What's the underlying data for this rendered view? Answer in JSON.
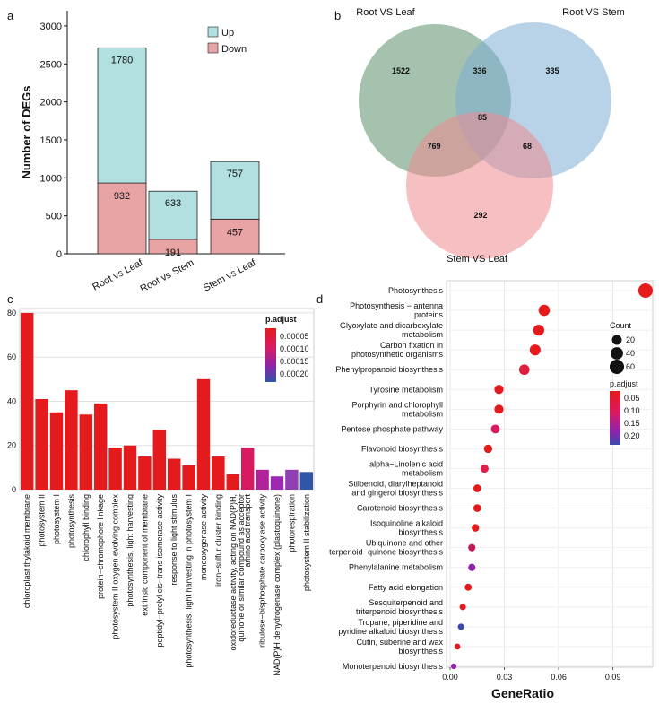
{
  "panel_labels": {
    "a": "a",
    "b": "b",
    "c": "c",
    "d": "d"
  },
  "chart_data": [
    {
      "panel": "a",
      "type": "bar",
      "stacked": true,
      "ylabel": "Number of DEGs",
      "ylim": [
        0,
        3200
      ],
      "yticks": [
        0,
        500,
        1000,
        1500,
        2000,
        2500,
        3000
      ],
      "categories": [
        "Root vs Leaf",
        "Root vs Stem",
        "Stem vs Leaf"
      ],
      "series": [
        {
          "name": "Down",
          "color": "#e8a3a5",
          "label_color": "#c2185b",
          "values": [
            932,
            191,
            457
          ]
        },
        {
          "name": "Up",
          "color": "#b2dfdf",
          "label_color": "#1e88e5",
          "values": [
            1780,
            633,
            757
          ]
        }
      ],
      "legend": [
        "Up",
        "Down"
      ]
    },
    {
      "panel": "b",
      "type": "venn",
      "sets": [
        {
          "name": "Root VS Leaf",
          "color": "#5a8f6a",
          "label_color": "#6aa57a"
        },
        {
          "name": "Root VS Stem",
          "color": "#7eaed6",
          "label_color": "#90bde0"
        },
        {
          "name": "Stem VS Leaf",
          "color": "#ee8a8f",
          "label_color": "#ef9a9a"
        }
      ],
      "regions": {
        "root_leaf_only": "1522",
        "root_stem_only": "335",
        "stem_leaf_only": "292",
        "rl_rs": "336",
        "rl_sl": "769",
        "rs_sl": "68",
        "all": "85"
      }
    },
    {
      "panel": "c",
      "type": "bar",
      "ylim": [
        0,
        82
      ],
      "yticks": [
        0,
        20,
        40,
        60,
        80
      ],
      "legend_title": "p.adjust",
      "legend_ticks": [
        "0.00005",
        "0.00010",
        "0.00015",
        "0.00020"
      ],
      "categories": [
        "chloroplast thylakoid membrane",
        "photosystem II",
        "photosystem I",
        "photosynthesis",
        "chlorophyll binding",
        "protein−chromophore linkage",
        "photosystem II oxygen evolving complex",
        "photosynthesis, light harvesting",
        "extrinsic component of membrane",
        "peptidyl−prolyl cis−trans isomerase activity",
        "response to light stimulus",
        "photosynthesis, light harvesting in photosystem I",
        "monooxygenase activity",
        "iron−sulfur cluster binding",
        "oxidoreductase activity, acting on NAD(P)H, quinone or similar compound as acceptor",
        "amino acid transport",
        "ribulose−bisphosphate carboxylase activity",
        "NAD(P)H dehydrogenase complex (plastoquinone)",
        "photorespiration",
        "photosystem II stabilization"
      ],
      "values": [
        80,
        41,
        35,
        45,
        34,
        39,
        19,
        20,
        15,
        27,
        14,
        11,
        50,
        15,
        7,
        19,
        9,
        6,
        9,
        8
      ],
      "colors": [
        "#e41a1c",
        "#e41a1c",
        "#e41a1c",
        "#e41a1c",
        "#e41a1c",
        "#e41a1c",
        "#e41a1c",
        "#e41a1c",
        "#e41a1c",
        "#e41a1c",
        "#e41a1c",
        "#e41a1c",
        "#e41a1c",
        "#e41a1c",
        "#e41a1c",
        "#d81b60",
        "#b0229a",
        "#9c27b0",
        "#8e3fb0",
        "#2f56a8"
      ]
    },
    {
      "panel": "d",
      "type": "scatter",
      "xlabel": "GeneRatio",
      "xlim": [
        -0.002,
        0.112
      ],
      "xticks": [
        0.0,
        0.03,
        0.06,
        0.09
      ],
      "xtick_labels": [
        "0.00",
        "0.03",
        "0.06",
        "0.09"
      ],
      "size_legend_title": "Count",
      "size_legend": [
        20,
        40,
        60
      ],
      "color_legend_title": "p.adjust",
      "color_legend_ticks": [
        "0.05",
        "0.10",
        "0.15",
        "0.20"
      ],
      "terms": [
        {
          "label": [
            "Photosynthesis"
          ],
          "x": 0.108,
          "count": 60,
          "color": "#e41a1c"
        },
        {
          "label": [
            "Photosynthesis − antenna",
            "proteins"
          ],
          "x": 0.052,
          "count": 30,
          "color": "#e41a1c"
        },
        {
          "label": [
            "Glyoxylate and dicarboxylate",
            "metabolism"
          ],
          "x": 0.049,
          "count": 28,
          "color": "#e41a1c"
        },
        {
          "label": [
            "Carbon fixation in",
            "photosynthetic organisms"
          ],
          "x": 0.047,
          "count": 27,
          "color": "#e41a1c"
        },
        {
          "label": [
            "Phenylpropanoid biosynthesis"
          ],
          "x": 0.041,
          "count": 24,
          "color": "#df1f3c"
        },
        {
          "label": [
            "Tyrosine metabolism"
          ],
          "x": 0.027,
          "count": 16,
          "color": "#e41a1c"
        },
        {
          "label": [
            "Porphyrin and chlorophyll",
            "metabolism"
          ],
          "x": 0.027,
          "count": 16,
          "color": "#e41a1c"
        },
        {
          "label": [
            "Pentose phosphate pathway"
          ],
          "x": 0.025,
          "count": 14,
          "color": "#d81b60"
        },
        {
          "label": [
            "Flavonoid biosynthesis"
          ],
          "x": 0.021,
          "count": 12,
          "color": "#e41a1c"
        },
        {
          "label": [
            "alpha−Linolenic acid",
            "metabolism"
          ],
          "x": 0.019,
          "count": 11,
          "color": "#e0204a"
        },
        {
          "label": [
            "Stilbenoid, diarylheptanoid",
            "and gingerol biosynthesis"
          ],
          "x": 0.015,
          "count": 9,
          "color": "#e41a1c"
        },
        {
          "label": [
            "Carotenoid biosynthesis"
          ],
          "x": 0.015,
          "count": 9,
          "color": "#e41a1c"
        },
        {
          "label": [
            "Isoquinoline alkaloid",
            "biosynthesis"
          ],
          "x": 0.014,
          "count": 8,
          "color": "#e41a1c"
        },
        {
          "label": [
            "Ubiquinone and other",
            "terpenoid−quinone biosynthesis"
          ],
          "x": 0.012,
          "count": 7,
          "color": "#c2185b"
        },
        {
          "label": [
            "Phenylalanine metabolism"
          ],
          "x": 0.012,
          "count": 7,
          "color": "#8e24aa"
        },
        {
          "label": [
            "Fatty acid elongation"
          ],
          "x": 0.01,
          "count": 6,
          "color": "#e41a1c"
        },
        {
          "label": [
            "Sesquiterpenoid and",
            "triterpenoid biosynthesis"
          ],
          "x": 0.007,
          "count": 4,
          "color": "#e41a1c"
        },
        {
          "label": [
            "Tropane, piperidine and",
            "pyridine alkaloid biosynthesis"
          ],
          "x": 0.006,
          "count": 4,
          "color": "#3949ab"
        },
        {
          "label": [
            "Cutin, suberine and wax",
            "biosynthesis"
          ],
          "x": 0.004,
          "count": 3,
          "color": "#e41a1c"
        },
        {
          "label": [
            "Monoterpenoid biosynthesis"
          ],
          "x": 0.002,
          "count": 2,
          "color": "#8e24aa"
        }
      ]
    }
  ]
}
